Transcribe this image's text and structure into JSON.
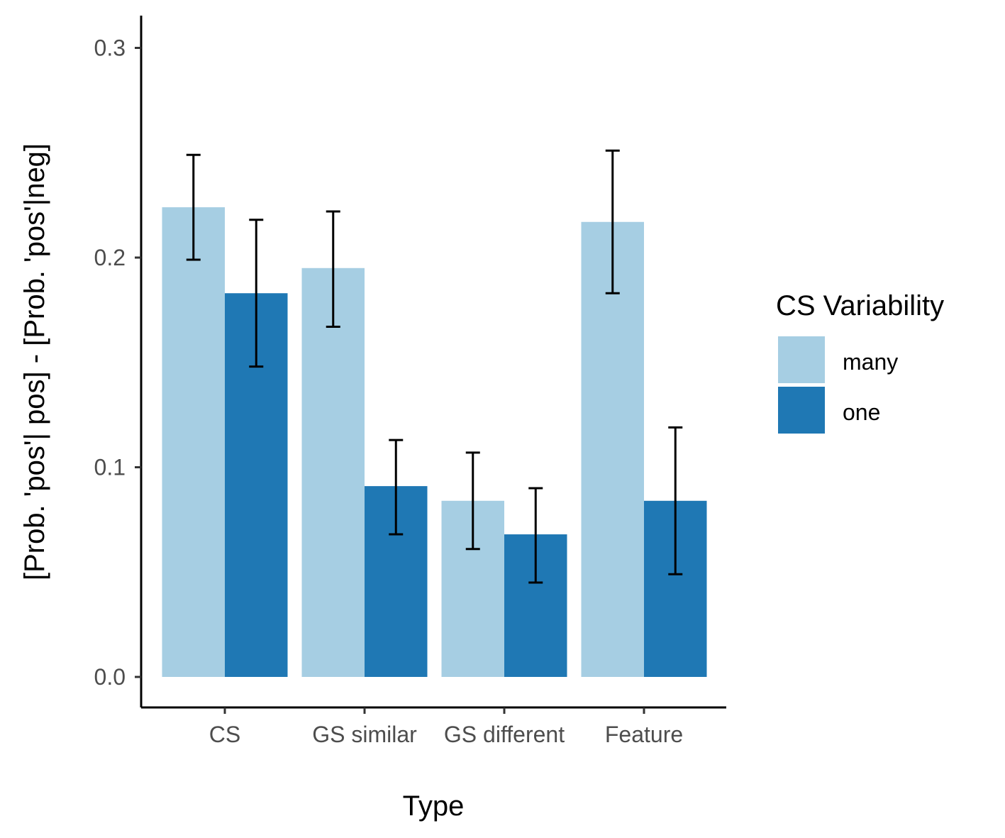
{
  "chart_data": {
    "type": "bar",
    "xlabel": "Type",
    "ylabel": "[Prob. 'pos'| pos] - [Prob. 'pos'|neg]",
    "ylim": [
      -0.014,
      0.315
    ],
    "yticks": [
      0.0,
      0.1,
      0.2,
      0.3
    ],
    "ytick_labels": [
      "0.0",
      "0.1",
      "0.2",
      "0.3"
    ],
    "categories": [
      "CS",
      "GS similar",
      "GS different",
      "Feature"
    ],
    "series": [
      {
        "name": "many",
        "color": "#a6cee3",
        "values": [
          0.224,
          0.195,
          0.084,
          0.217
        ],
        "error_low": [
          0.199,
          0.167,
          0.061,
          0.183
        ],
        "error_high": [
          0.249,
          0.222,
          0.107,
          0.251
        ]
      },
      {
        "name": "one",
        "color": "#1f78b4",
        "values": [
          0.183,
          0.091,
          0.068,
          0.084
        ],
        "error_low": [
          0.148,
          0.068,
          0.045,
          0.049
        ],
        "error_high": [
          0.218,
          0.113,
          0.09,
          0.119
        ]
      }
    ],
    "legend": {
      "title": "CS Variability",
      "position": "right"
    },
    "grid": false
  }
}
